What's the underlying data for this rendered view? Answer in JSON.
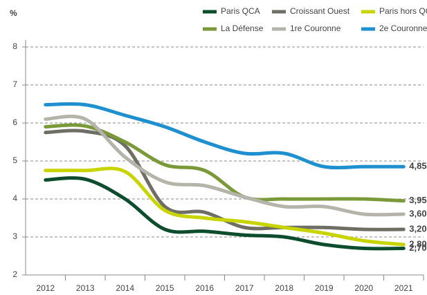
{
  "chart_data": {
    "type": "line",
    "y_label": "%",
    "categories": [
      "2012",
      "2013",
      "2014",
      "2015",
      "2016",
      "2017",
      "2018",
      "2019",
      "2020",
      "2021"
    ],
    "ylim": [
      2,
      8
    ],
    "yticks": [
      2,
      3,
      4,
      5,
      6,
      7,
      8
    ],
    "grid": true,
    "series": [
      {
        "name": "Paris QCA",
        "color": "#0d4d2e",
        "values": [
          4.5,
          4.52,
          4.0,
          3.2,
          3.15,
          3.05,
          3.0,
          2.8,
          2.7,
          2.7
        ],
        "value_labels": [
          null,
          null,
          null,
          null,
          null,
          null,
          null,
          null,
          null,
          "2,70"
        ]
      },
      {
        "name": "Croissant Ouest",
        "color": "#6e6e64",
        "values": [
          5.75,
          5.78,
          5.4,
          3.8,
          3.65,
          3.25,
          3.25,
          3.25,
          3.2,
          3.2
        ],
        "value_labels": [
          null,
          null,
          null,
          null,
          null,
          null,
          null,
          null,
          null,
          "3,20"
        ]
      },
      {
        "name": "Paris hors QCA",
        "color": "#c8d400",
        "values": [
          4.75,
          4.75,
          4.72,
          3.7,
          3.5,
          3.4,
          3.25,
          3.1,
          2.9,
          2.8
        ],
        "value_labels": [
          null,
          null,
          null,
          null,
          null,
          null,
          null,
          null,
          null,
          "2,80"
        ]
      },
      {
        "name": "La Défense",
        "color": "#7a9a3a",
        "values": [
          5.9,
          5.92,
          5.5,
          4.9,
          4.75,
          4.05,
          4.0,
          4.0,
          4.0,
          3.95
        ],
        "value_labels": [
          null,
          null,
          null,
          null,
          null,
          null,
          null,
          null,
          null,
          "3,95"
        ]
      },
      {
        "name": "1re Couronne",
        "color": "#b4b4aa",
        "values": [
          6.1,
          6.1,
          5.1,
          4.45,
          4.35,
          4.05,
          3.8,
          3.8,
          3.6,
          3.6
        ],
        "value_labels": [
          null,
          null,
          null,
          null,
          null,
          null,
          null,
          null,
          null,
          "3,60"
        ]
      },
      {
        "name": "2e Couronne",
        "color": "#1e90d0",
        "values": [
          6.48,
          6.48,
          6.2,
          5.9,
          5.5,
          5.2,
          5.2,
          4.85,
          4.85,
          4.85
        ],
        "value_labels": [
          null,
          null,
          null,
          null,
          null,
          null,
          null,
          null,
          null,
          "4,85"
        ]
      }
    ]
  }
}
